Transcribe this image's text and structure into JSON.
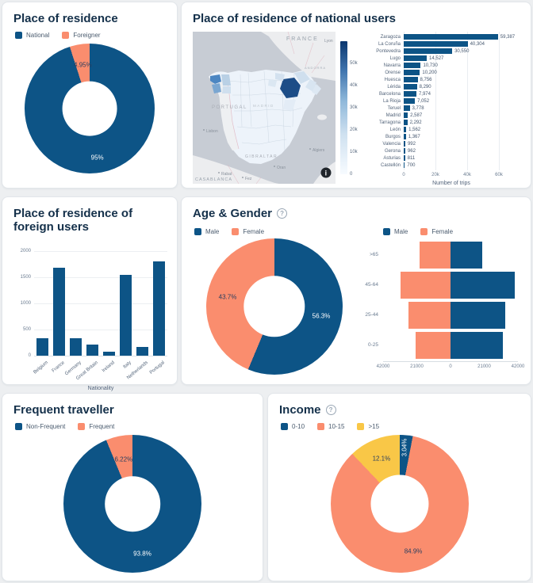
{
  "icons": {
    "help": "?",
    "info": "i"
  },
  "colors": {
    "blue": "#0D5486",
    "salmon": "#FA8D6E",
    "yellow": "#F9C747",
    "title": "#14304A"
  },
  "chart_data": [
    {
      "id": "residence",
      "type": "pie",
      "title": "Place of residence",
      "labels": [
        "National",
        "Foreigner"
      ],
      "values": [
        95.05,
        4.95
      ],
      "display": [
        "95%",
        "4.95%"
      ],
      "colors": [
        "#0D5486",
        "#FA8D6E"
      ],
      "label_colors": [
        "#FFFFFF",
        "#2A3F5F"
      ],
      "label_radius": [
        0.76,
        0.68
      ],
      "hole": 0.42,
      "legend_position": "top-left"
    },
    {
      "id": "national",
      "type": "bar",
      "orientation": "h",
      "title": "Place of residence of national users",
      "categories": [
        "Zaragoza",
        "La Coruña",
        "Pontevedra",
        "Lugo",
        "Navarra",
        "Orense",
        "Huesca",
        "Lérida",
        "Barcelona",
        "La Rioja",
        "Teruel",
        "Madrid",
        "Tarragona",
        "León",
        "Burgos",
        "Valencia",
        "Gerona",
        "Asturias",
        "Castellón"
      ],
      "values": [
        59387,
        40304,
        30550,
        14527,
        10730,
        10200,
        8756,
        8290,
        7974,
        7052,
        3778,
        2587,
        2292,
        1562,
        1367,
        992,
        962,
        811,
        700
      ],
      "display_values": [
        "59,387",
        "40,304",
        "30,550",
        "14,527",
        "10,730",
        "10,200",
        "8,756",
        "8,290",
        "7,974",
        "7,052",
        "3,778",
        "2,587",
        "2,292",
        "1,562",
        "1,367",
        "992",
        "962",
        "811",
        "700"
      ],
      "xlabel": "Number of trips",
      "xticks": [
        "0",
        "20k",
        "40k",
        "60k"
      ],
      "xmax": 60000,
      "bar_color": "#0D5486",
      "colorbar": {
        "ticks": [
          "0",
          "10k",
          "20k",
          "30k",
          "40k",
          "50k"
        ],
        "tick_values": [
          0,
          10000,
          20000,
          30000,
          40000,
          50000
        ],
        "max": 60000,
        "top_color": "#0A366E",
        "bottom_color": "#F7FBFF"
      },
      "map": {
        "sea": "#C7CCD4",
        "land": "#ECEDEF",
        "spain": "#EDF3FA",
        "portugal_fill": "#EEF0F2",
        "country_border": "#DFB3BF",
        "province_line": "#C6D2DE",
        "labels": {
          "france": "FRANCE",
          "lyon": "Lyon",
          "andorra": "ANDORRA",
          "portugal": "PORTUGAL",
          "lisbon": "Lisbon",
          "madrid": "MADRID",
          "gibraltar": "GIBRALTAR",
          "casablanca": "CASABLANCA",
          "rabat": "Rabat",
          "fez": "Fez",
          "oran": "Oran",
          "algiers": "Algiers"
        },
        "regions": [
          {
            "name": "Zaragoza",
            "color": "#1D4D87"
          },
          {
            "name": "La Coruña",
            "color": "#4C86C2"
          },
          {
            "name": "Pontevedra",
            "color": "#7AA6D1"
          },
          {
            "name": "Lugo",
            "color": "#B9D0E5"
          },
          {
            "name": "Orense",
            "color": "#CFDFEE"
          },
          {
            "name": "Navarra",
            "color": "#D3E1EF"
          },
          {
            "name": "Huesca",
            "color": "#CFDFEE"
          },
          {
            "name": "Lérida",
            "color": "#D8E5F1"
          },
          {
            "name": "Barcelona",
            "color": "#DDE8F3"
          },
          {
            "name": "La Rioja",
            "color": "#DBE7F2"
          },
          {
            "name": "Teruel",
            "color": "#E3ECF6"
          }
        ]
      }
    },
    {
      "id": "foreign",
      "type": "bar",
      "title": "Place of residence of foreign users",
      "categories": [
        "Belgium",
        "France",
        "Germany",
        "Great Britain",
        "Ireland",
        "Italy",
        "Netherlands",
        "Portugal"
      ],
      "values": [
        340,
        1680,
        340,
        215,
        80,
        1550,
        160,
        1800
      ],
      "xlabel": "Nationality",
      "yticks": [
        "0",
        "500",
        "1000",
        "1500",
        "2000"
      ],
      "ymax": 2000,
      "bar_color": "#0D5486"
    },
    {
      "id": "age_gender_donut",
      "type": "pie",
      "title": "Age & Gender",
      "labels": [
        "Male",
        "Female"
      ],
      "values": [
        56.3,
        43.7
      ],
      "display": [
        "56.3%",
        "43.7%"
      ],
      "colors": [
        "#0D5486",
        "#FA8D6E"
      ],
      "label_colors": [
        "#FFFFFF",
        "#2A3F5F"
      ],
      "label_radius": [
        0.7,
        0.7
      ],
      "hole": 0.45
    },
    {
      "id": "age_gender_pyramid",
      "type": "bar-pyramid",
      "categories": [
        ">65",
        "45-64",
        "25-44",
        "0-25"
      ],
      "series": [
        {
          "name": "Male",
          "color": "#0D5486",
          "values": [
            20000,
            40000,
            34000,
            32500
          ]
        },
        {
          "name": "Female",
          "color": "#FA8D6E",
          "values": [
            19500,
            31000,
            26000,
            21500
          ]
        }
      ],
      "xticks": [
        "42000",
        "21000",
        "0",
        "21000",
        "42000"
      ],
      "xmax": 42000
    },
    {
      "id": "frequent",
      "type": "pie",
      "title": "Frequent traveller",
      "labels": [
        "Non-Frequent",
        "Frequent"
      ],
      "values": [
        93.8,
        6.22
      ],
      "display": [
        "93.8%",
        "6.22%"
      ],
      "colors": [
        "#0D5486",
        "#FA8D6E"
      ],
      "label_colors": [
        "#FFFFFF",
        "#2A3F5F"
      ],
      "label_radius": [
        0.74,
        0.66
      ],
      "hole": 0.4
    },
    {
      "id": "income",
      "type": "pie",
      "title": "Income",
      "labels": [
        "0-10",
        "10-15",
        ">15"
      ],
      "values": [
        3.04,
        84.9,
        12.1
      ],
      "display": [
        "3.04%",
        "84.9%",
        "12.1%"
      ],
      "colors": [
        "#0D5486",
        "#FA8D6E",
        "#F9C747"
      ],
      "label_colors": [
        "#FFFFFF",
        "#2A3F5F",
        "#2A3F5F"
      ],
      "label_radius": [
        0.82,
        0.72,
        0.7
      ],
      "label_rotations": [
        -90,
        0,
        0
      ],
      "hole": 0.42
    }
  ]
}
